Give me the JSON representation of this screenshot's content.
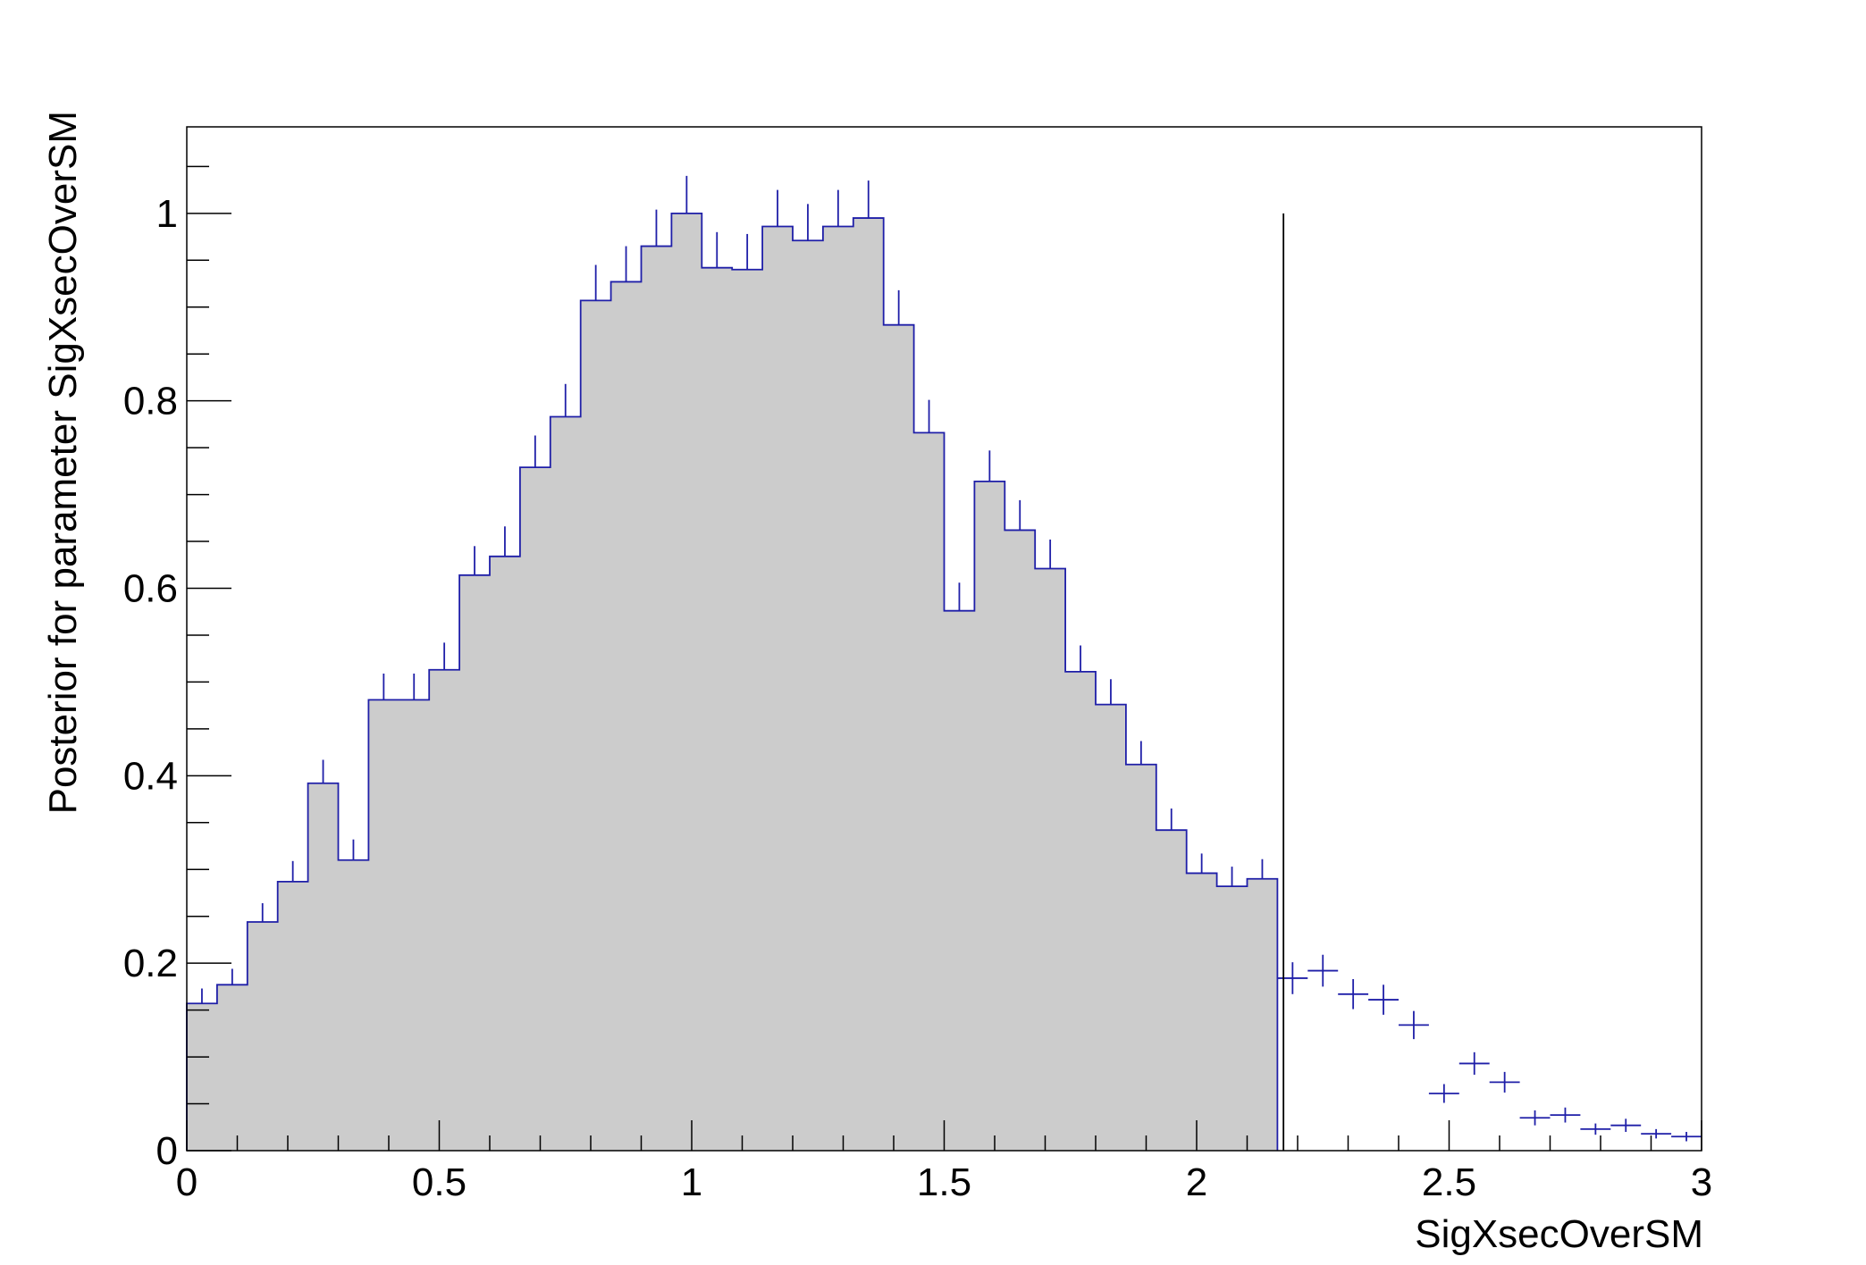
{
  "chart_data": {
    "type": "bar",
    "title": "",
    "xlabel": "SigXsecOverSM",
    "ylabel": "Posterior for parameter SigXsecOverSM",
    "xlim": [
      0,
      3
    ],
    "ylim": [
      0,
      1.0923
    ],
    "x_ticks": [
      0,
      0.5,
      1,
      1.5,
      2,
      2.5,
      3
    ],
    "x_tick_labels": [
      "0",
      "0.5",
      "1",
      "1.5",
      "2",
      "2.5",
      "3"
    ],
    "y_ticks": [
      0,
      0.2,
      0.4,
      0.6,
      0.8,
      1
    ],
    "y_tick_labels": [
      "0",
      "0.2",
      "0.4",
      "0.6",
      "0.8",
      "1"
    ],
    "grid": false,
    "bin_width": 0.06,
    "bin_centers": [
      0.03,
      0.09,
      0.15,
      0.21,
      0.27,
      0.33,
      0.39,
      0.45,
      0.51,
      0.57,
      0.63,
      0.69,
      0.75,
      0.81,
      0.87,
      0.93,
      0.99,
      1.05,
      1.11,
      1.17,
      1.23,
      1.29,
      1.35,
      1.41,
      1.47,
      1.53,
      1.59,
      1.65,
      1.71,
      1.77,
      1.83,
      1.89,
      1.95,
      2.01,
      2.07,
      2.13,
      2.19,
      2.25,
      2.31,
      2.37,
      2.43,
      2.49,
      2.55,
      2.61,
      2.67,
      2.73,
      2.79,
      2.85,
      2.91,
      2.97
    ],
    "values": [
      0.157,
      0.177,
      0.244,
      0.287,
      0.392,
      0.31,
      0.481,
      0.481,
      0.513,
      0.614,
      0.634,
      0.729,
      0.783,
      0.907,
      0.927,
      0.965,
      1.0,
      0.942,
      0.94,
      0.986,
      0.971,
      0.986,
      0.995,
      0.881,
      0.766,
      0.576,
      0.714,
      0.662,
      0.621,
      0.511,
      0.476,
      0.412,
      0.342,
      0.296,
      0.282,
      0.29,
      0.184,
      0.192,
      0.167,
      0.161,
      0.134,
      0.061,
      0.093,
      0.073,
      0.035,
      0.038,
      0.023,
      0.027,
      0.018,
      0.015
    ],
    "errors": [
      0.016,
      0.017,
      0.02,
      0.022,
      0.025,
      0.022,
      0.028,
      0.028,
      0.029,
      0.031,
      0.032,
      0.034,
      0.035,
      0.038,
      0.038,
      0.039,
      0.04,
      0.038,
      0.038,
      0.039,
      0.039,
      0.039,
      0.04,
      0.037,
      0.035,
      0.03,
      0.033,
      0.032,
      0.031,
      0.028,
      0.027,
      0.025,
      0.023,
      0.021,
      0.021,
      0.021,
      0.017,
      0.017,
      0.016,
      0.016,
      0.015,
      0.01,
      0.012,
      0.011,
      0.008,
      0.008,
      0.006,
      0.007,
      0.005,
      0.005
    ],
    "shaded_upper_edge": 2.16,
    "vertical_line": {
      "x": 2.172,
      "y_top": 1.0
    },
    "colors": {
      "histogram": "#1f1fa8",
      "fill": "#cccccc",
      "frame": "#000000",
      "vertical_line": "#000000"
    }
  }
}
